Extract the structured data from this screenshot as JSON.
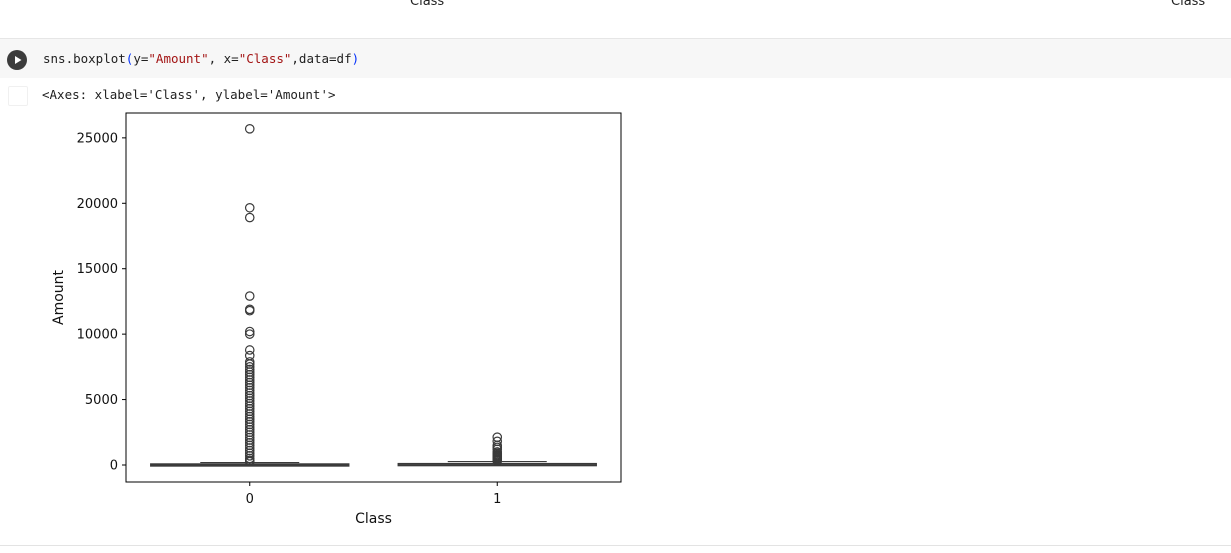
{
  "previous_output": {
    "left_label": "Class",
    "right_label": "Class"
  },
  "cell": {
    "run_icon": "play-circle-icon",
    "code_tokens": [
      {
        "t": "sns.boxplot",
        "k": "plain"
      },
      {
        "t": "(",
        "k": "paren"
      },
      {
        "t": "y=",
        "k": "plain"
      },
      {
        "t": "\"Amount\"",
        "k": "str"
      },
      {
        "t": ", x=",
        "k": "plain"
      },
      {
        "t": "\"Class\"",
        "k": "str"
      },
      {
        "t": ",data=df",
        "k": "plain"
      },
      {
        "t": ")",
        "k": "paren"
      }
    ]
  },
  "output": {
    "icon": "output-panel-icon",
    "text": "<Axes: xlabel='Class', ylabel='Amount'>"
  },
  "chart_data": {
    "type": "box",
    "xlabel": "Class",
    "ylabel": "Amount",
    "categories": [
      "0",
      "1"
    ],
    "yticks": [
      0,
      5000,
      10000,
      15000,
      20000,
      25000
    ],
    "ylim": [
      -1300,
      26900
    ],
    "boxes": [
      {
        "category": "0",
        "q1": 6,
        "median": 22,
        "q3": 77,
        "whisker_low": 0,
        "whisker_high": 185,
        "outliers": [
          25691,
          19656,
          18910,
          12910,
          11898,
          11790,
          10199,
          10000,
          8790,
          8360,
          7879,
          7712,
          7500,
          7300,
          7100,
          6900,
          6700,
          6500,
          6300,
          6100,
          5900,
          5700,
          5500,
          5300,
          5100,
          4900,
          4700,
          4500,
          4300,
          4100,
          3900,
          3700,
          3500,
          3300,
          3100,
          2900,
          2700,
          2500,
          2300,
          2100,
          1900,
          1700,
          1500,
          1300,
          1100,
          900,
          700,
          500,
          350,
          250
        ]
      },
      {
        "category": "1",
        "q1": 1,
        "median": 9,
        "q3": 105,
        "whisker_low": 0,
        "whisker_high": 260,
        "outliers": [
          2125,
          1810,
          1500,
          1350,
          1200,
          1000,
          900,
          800,
          720,
          650,
          580,
          500,
          430,
          360,
          300
        ]
      }
    ],
    "colors": {
      "box_fill": "#ffffff",
      "stroke": "#3a3a3a"
    }
  }
}
